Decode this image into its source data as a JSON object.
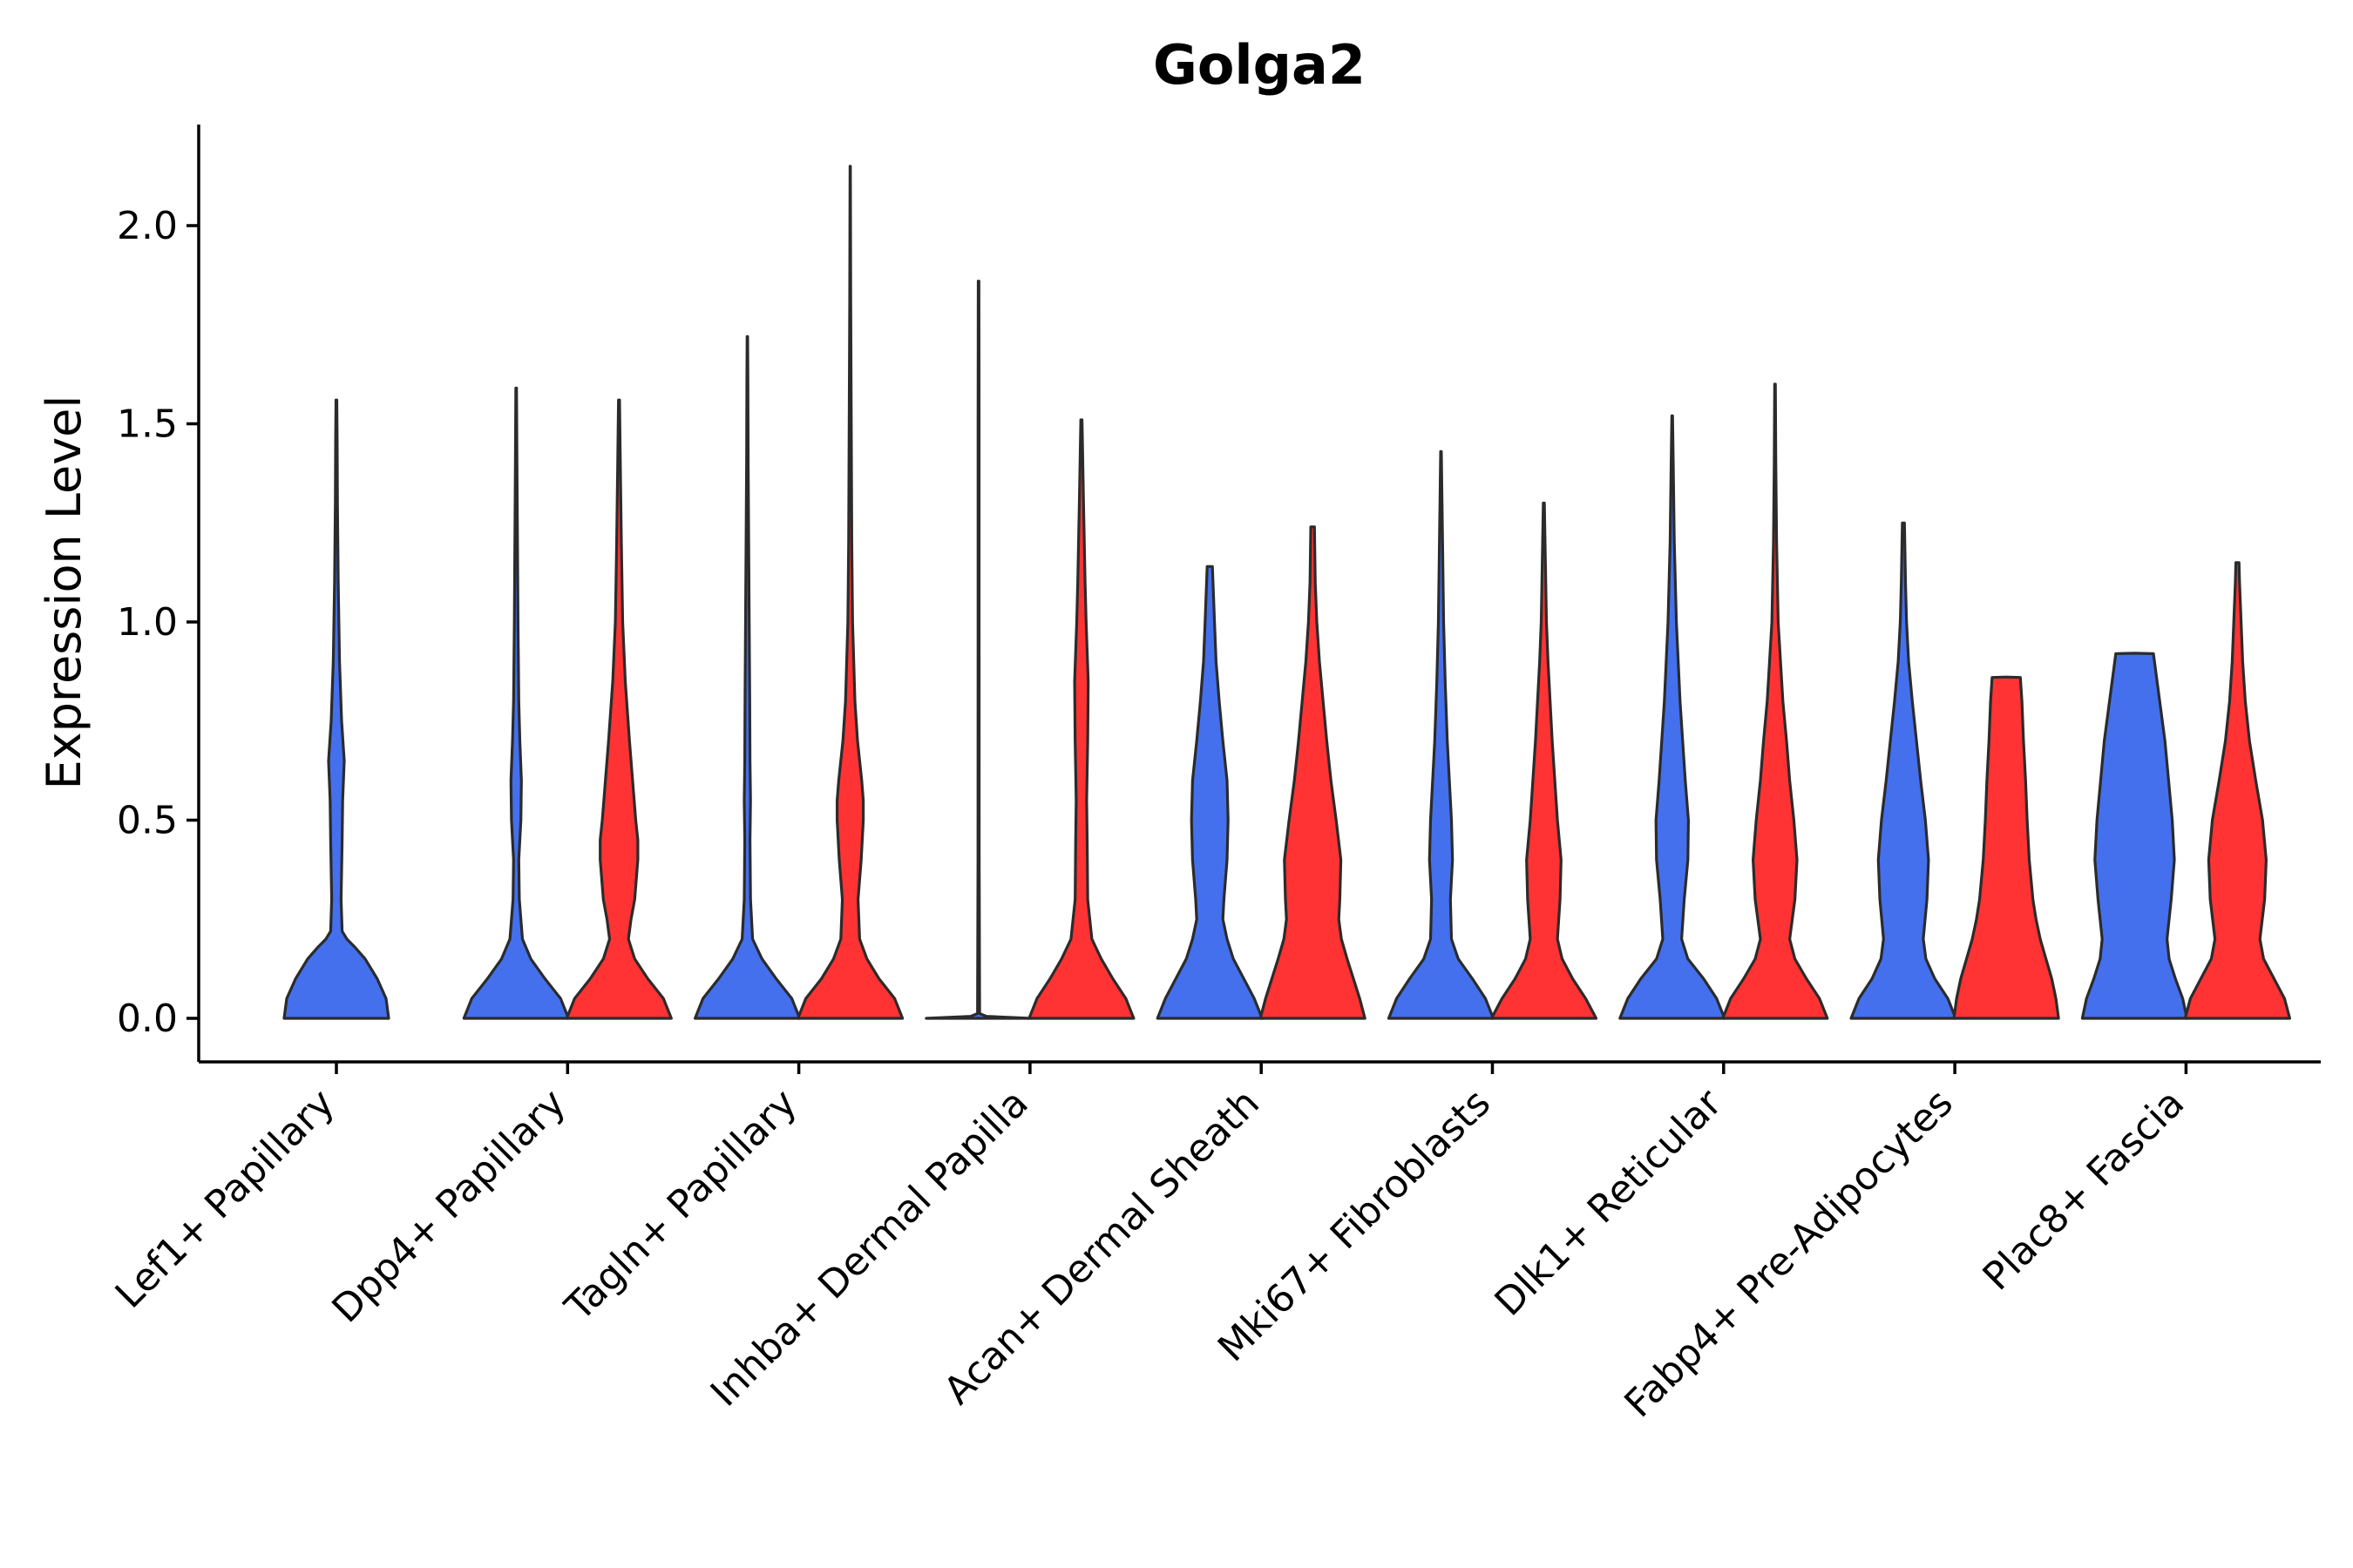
{
  "chart_data": {
    "type": "violin",
    "title": "Golga2",
    "xlabel": "",
    "ylabel": "Expression Level",
    "ylim": [
      -0.11,
      2.25
    ],
    "yticks": [
      0.0,
      0.5,
      1.0,
      1.5,
      2.0
    ],
    "ytick_labels": [
      "0.0",
      "0.5",
      "1.0",
      "1.5",
      "2.0"
    ],
    "grid": false,
    "legend": "none",
    "colors": {
      "group_a": "#4470EE",
      "group_b": "#FF3333",
      "outline": "#2B2B2B"
    },
    "categories": [
      "Lef1+ Papillary",
      "Dpp4+ Papillary",
      "Tagln+ Papillary",
      "Inhba+ Dermal Papilla",
      "Acan+ Dermal Sheath",
      "Mki67+ Fibroblasts",
      "Dlk1+ Reticular",
      "Fabp4+ Pre-Adipocytes",
      "Plac8+ Fascia"
    ],
    "violins": [
      {
        "category": 0,
        "group": "group_a",
        "offset": 0,
        "profile": [
          [
            0,
            1.0
          ],
          [
            0.05,
            0.95
          ],
          [
            0.1,
            0.78
          ],
          [
            0.15,
            0.55
          ],
          [
            0.18,
            0.35
          ],
          [
            0.2,
            0.2
          ],
          [
            0.22,
            0.11
          ],
          [
            0.3,
            0.09
          ],
          [
            0.45,
            0.11
          ],
          [
            0.55,
            0.12
          ],
          [
            0.65,
            0.15
          ],
          [
            0.75,
            0.1
          ],
          [
            0.9,
            0.06
          ],
          [
            1.1,
            0.035
          ],
          [
            1.3,
            0.02
          ],
          [
            1.45,
            0.015
          ],
          [
            1.56,
            0.008
          ]
        ]
      },
      {
        "category": 1,
        "group": "group_a",
        "offset": -1,
        "profile": [
          [
            0,
            1.0
          ],
          [
            0.05,
            0.85
          ],
          [
            0.1,
            0.55
          ],
          [
            0.15,
            0.28
          ],
          [
            0.2,
            0.12
          ],
          [
            0.25,
            0.09
          ],
          [
            0.3,
            0.06
          ],
          [
            0.4,
            0.05
          ],
          [
            0.5,
            0.09
          ],
          [
            0.6,
            0.1
          ],
          [
            0.7,
            0.07
          ],
          [
            0.8,
            0.05
          ],
          [
            1.0,
            0.035
          ],
          [
            1.2,
            0.025
          ],
          [
            1.4,
            0.015
          ],
          [
            1.59,
            0.006
          ]
        ]
      },
      {
        "category": 1,
        "group": "group_b",
        "offset": 1,
        "profile": [
          [
            0,
            1.0
          ],
          [
            0.05,
            0.85
          ],
          [
            0.1,
            0.55
          ],
          [
            0.15,
            0.3
          ],
          [
            0.2,
            0.18
          ],
          [
            0.25,
            0.23
          ],
          [
            0.3,
            0.3
          ],
          [
            0.4,
            0.36
          ],
          [
            0.45,
            0.36
          ],
          [
            0.5,
            0.32
          ],
          [
            0.6,
            0.26
          ],
          [
            0.7,
            0.2
          ],
          [
            0.85,
            0.12
          ],
          [
            1.0,
            0.07
          ],
          [
            1.2,
            0.045
          ],
          [
            1.4,
            0.025
          ],
          [
            1.56,
            0.01
          ]
        ]
      },
      {
        "category": 2,
        "group": "group_a",
        "offset": -1,
        "profile": [
          [
            0,
            1.0
          ],
          [
            0.05,
            0.85
          ],
          [
            0.1,
            0.55
          ],
          [
            0.15,
            0.28
          ],
          [
            0.2,
            0.1
          ],
          [
            0.3,
            0.06
          ],
          [
            0.45,
            0.05
          ],
          [
            0.55,
            0.06
          ],
          [
            0.65,
            0.05
          ],
          [
            0.8,
            0.045
          ],
          [
            1.0,
            0.035
          ],
          [
            1.2,
            0.025
          ],
          [
            1.4,
            0.015
          ],
          [
            1.6,
            0.01
          ],
          [
            1.72,
            0.005
          ]
        ]
      },
      {
        "category": 2,
        "group": "group_b",
        "offset": 1,
        "profile": [
          [
            0,
            1.0
          ],
          [
            0.05,
            0.85
          ],
          [
            0.1,
            0.55
          ],
          [
            0.15,
            0.32
          ],
          [
            0.2,
            0.18
          ],
          [
            0.3,
            0.15
          ],
          [
            0.4,
            0.21
          ],
          [
            0.5,
            0.25
          ],
          [
            0.55,
            0.25
          ],
          [
            0.6,
            0.22
          ],
          [
            0.7,
            0.14
          ],
          [
            0.8,
            0.09
          ],
          [
            1.0,
            0.045
          ],
          [
            1.2,
            0.03
          ],
          [
            1.5,
            0.02
          ],
          [
            1.8,
            0.01
          ],
          [
            2.15,
            0.004
          ]
        ]
      },
      {
        "category": 3,
        "group": "group_a",
        "offset": -1,
        "profile": [
          [
            0,
            1.0
          ],
          [
            0.005,
            0.15
          ],
          [
            0.012,
            0.02
          ],
          [
            0.4,
            0.012
          ],
          [
            1.0,
            0.01
          ],
          [
            1.5,
            0.01
          ],
          [
            1.86,
            0.006
          ]
        ]
      },
      {
        "category": 3,
        "group": "group_b",
        "offset": 1,
        "profile": [
          [
            0,
            1.0
          ],
          [
            0.05,
            0.85
          ],
          [
            0.1,
            0.6
          ],
          [
            0.15,
            0.38
          ],
          [
            0.2,
            0.2
          ],
          [
            0.3,
            0.12
          ],
          [
            0.45,
            0.11
          ],
          [
            0.55,
            0.1
          ],
          [
            0.7,
            0.12
          ],
          [
            0.85,
            0.13
          ],
          [
            1.0,
            0.09
          ],
          [
            1.1,
            0.07
          ],
          [
            1.3,
            0.04
          ],
          [
            1.51,
            0.012
          ]
        ]
      },
      {
        "category": 4,
        "group": "group_a",
        "offset": -1,
        "profile": [
          [
            0,
            1.0
          ],
          [
            0.05,
            0.85
          ],
          [
            0.1,
            0.65
          ],
          [
            0.15,
            0.45
          ],
          [
            0.2,
            0.33
          ],
          [
            0.25,
            0.25
          ],
          [
            0.3,
            0.27
          ],
          [
            0.4,
            0.33
          ],
          [
            0.5,
            0.35
          ],
          [
            0.6,
            0.33
          ],
          [
            0.7,
            0.25
          ],
          [
            0.8,
            0.18
          ],
          [
            0.9,
            0.12
          ],
          [
            1.0,
            0.09
          ],
          [
            1.14,
            0.05
          ]
        ]
      },
      {
        "category": 4,
        "group": "group_b",
        "offset": 1,
        "profile": [
          [
            0,
            1.0
          ],
          [
            0.05,
            0.9
          ],
          [
            0.1,
            0.78
          ],
          [
            0.15,
            0.66
          ],
          [
            0.2,
            0.55
          ],
          [
            0.25,
            0.5
          ],
          [
            0.3,
            0.52
          ],
          [
            0.4,
            0.54
          ],
          [
            0.5,
            0.45
          ],
          [
            0.6,
            0.35
          ],
          [
            0.7,
            0.27
          ],
          [
            0.8,
            0.2
          ],
          [
            0.9,
            0.13
          ],
          [
            1.0,
            0.08
          ],
          [
            1.1,
            0.05
          ],
          [
            1.24,
            0.035
          ]
        ]
      },
      {
        "category": 5,
        "group": "group_a",
        "offset": -1,
        "profile": [
          [
            0,
            1.0
          ],
          [
            0.05,
            0.85
          ],
          [
            0.1,
            0.6
          ],
          [
            0.15,
            0.33
          ],
          [
            0.2,
            0.2
          ],
          [
            0.3,
            0.18
          ],
          [
            0.4,
            0.22
          ],
          [
            0.5,
            0.2
          ],
          [
            0.6,
            0.16
          ],
          [
            0.7,
            0.12
          ],
          [
            0.85,
            0.08
          ],
          [
            1.0,
            0.05
          ],
          [
            1.2,
            0.03
          ],
          [
            1.43,
            0.006
          ]
        ]
      },
      {
        "category": 5,
        "group": "group_b",
        "offset": 1,
        "profile": [
          [
            0,
            1.0
          ],
          [
            0.05,
            0.8
          ],
          [
            0.1,
            0.55
          ],
          [
            0.15,
            0.35
          ],
          [
            0.2,
            0.26
          ],
          [
            0.3,
            0.31
          ],
          [
            0.4,
            0.33
          ],
          [
            0.5,
            0.26
          ],
          [
            0.6,
            0.21
          ],
          [
            0.7,
            0.16
          ],
          [
            0.8,
            0.12
          ],
          [
            0.9,
            0.08
          ],
          [
            1.0,
            0.05
          ],
          [
            1.15,
            0.03
          ],
          [
            1.3,
            0.01
          ]
        ]
      },
      {
        "category": 6,
        "group": "group_a",
        "offset": -1,
        "profile": [
          [
            0,
            1.0
          ],
          [
            0.05,
            0.85
          ],
          [
            0.1,
            0.6
          ],
          [
            0.15,
            0.3
          ],
          [
            0.2,
            0.18
          ],
          [
            0.3,
            0.23
          ],
          [
            0.4,
            0.3
          ],
          [
            0.5,
            0.31
          ],
          [
            0.6,
            0.25
          ],
          [
            0.7,
            0.2
          ],
          [
            0.8,
            0.15
          ],
          [
            1.0,
            0.08
          ],
          [
            1.2,
            0.04
          ],
          [
            1.4,
            0.02
          ],
          [
            1.52,
            0.006
          ]
        ]
      },
      {
        "category": 6,
        "group": "group_b",
        "offset": 1,
        "profile": [
          [
            0,
            1.0
          ],
          [
            0.05,
            0.85
          ],
          [
            0.1,
            0.6
          ],
          [
            0.15,
            0.38
          ],
          [
            0.2,
            0.28
          ],
          [
            0.3,
            0.38
          ],
          [
            0.4,
            0.42
          ],
          [
            0.5,
            0.36
          ],
          [
            0.6,
            0.28
          ],
          [
            0.7,
            0.22
          ],
          [
            0.8,
            0.15
          ],
          [
            1.0,
            0.06
          ],
          [
            1.2,
            0.03
          ],
          [
            1.4,
            0.015
          ],
          [
            1.6,
            0.006
          ]
        ]
      },
      {
        "category": 7,
        "group": "group_a",
        "offset": -1,
        "profile": [
          [
            0,
            1.0
          ],
          [
            0.05,
            0.85
          ],
          [
            0.1,
            0.6
          ],
          [
            0.15,
            0.43
          ],
          [
            0.2,
            0.38
          ],
          [
            0.3,
            0.45
          ],
          [
            0.4,
            0.48
          ],
          [
            0.5,
            0.42
          ],
          [
            0.6,
            0.33
          ],
          [
            0.7,
            0.25
          ],
          [
            0.8,
            0.17
          ],
          [
            0.9,
            0.1
          ],
          [
            1.0,
            0.06
          ],
          [
            1.1,
            0.04
          ],
          [
            1.25,
            0.02
          ]
        ]
      },
      {
        "category": 7,
        "group": "group_b",
        "offset": 1,
        "profile": [
          [
            0,
            1.0
          ],
          [
            0.05,
            0.95
          ],
          [
            0.1,
            0.87
          ],
          [
            0.15,
            0.76
          ],
          [
            0.2,
            0.65
          ],
          [
            0.25,
            0.57
          ],
          [
            0.3,
            0.51
          ],
          [
            0.4,
            0.44
          ],
          [
            0.5,
            0.4
          ],
          [
            0.6,
            0.37
          ],
          [
            0.7,
            0.33
          ],
          [
            0.8,
            0.3
          ],
          [
            0.86,
            0.27
          ],
          [
            0.861,
            0.0
          ]
        ]
      },
      {
        "category": 8,
        "group": "group_a",
        "offset": -1,
        "profile": [
          [
            0,
            1.0
          ],
          [
            0.05,
            0.92
          ],
          [
            0.1,
            0.78
          ],
          [
            0.15,
            0.66
          ],
          [
            0.2,
            0.62
          ],
          [
            0.3,
            0.7
          ],
          [
            0.4,
            0.76
          ],
          [
            0.5,
            0.72
          ],
          [
            0.6,
            0.65
          ],
          [
            0.7,
            0.58
          ],
          [
            0.8,
            0.48
          ],
          [
            0.9,
            0.38
          ],
          [
            0.92,
            0.36
          ],
          [
            0.921,
            0.0
          ]
        ]
      },
      {
        "category": 8,
        "group": "group_b",
        "offset": 1,
        "profile": [
          [
            0,
            1.0
          ],
          [
            0.05,
            0.9
          ],
          [
            0.1,
            0.7
          ],
          [
            0.15,
            0.5
          ],
          [
            0.2,
            0.43
          ],
          [
            0.3,
            0.52
          ],
          [
            0.4,
            0.55
          ],
          [
            0.5,
            0.48
          ],
          [
            0.6,
            0.35
          ],
          [
            0.7,
            0.23
          ],
          [
            0.8,
            0.15
          ],
          [
            0.9,
            0.1
          ],
          [
            1.0,
            0.07
          ],
          [
            1.1,
            0.04
          ],
          [
            1.15,
            0.03
          ]
        ]
      }
    ]
  }
}
